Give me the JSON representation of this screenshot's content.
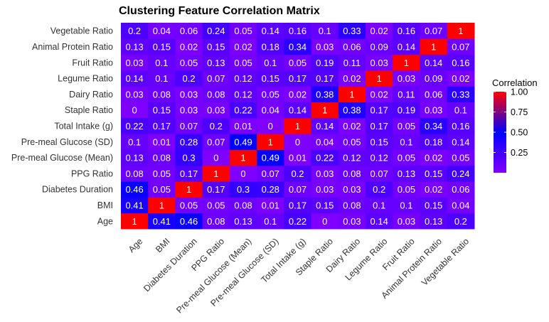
{
  "chart_data": {
    "type": "heatmap",
    "title": "Clustering Feature Correlation Matrix",
    "xlabel": "",
    "ylabel": "",
    "variables": [
      "Age",
      "BMI",
      "Diabetes Duration",
      "PPG Ratio",
      "Pre-meal Glucose (Mean)",
      "Pre-meal Glucose (SD)",
      "Total Intake (g)",
      "Staple Ratio",
      "Dairy Ratio",
      "Legume Ratio",
      "Fruit Ratio",
      "Animal Protein Ratio",
      "Vegetable Ratio"
    ],
    "matrix": [
      [
        1,
        0.41,
        0.46,
        0.08,
        0.13,
        0.1,
        0.22,
        0,
        0.03,
        0.14,
        0.03,
        0.13,
        0.2
      ],
      [
        0.41,
        1,
        0.05,
        0.05,
        0.08,
        0.01,
        0.17,
        0.15,
        0.08,
        0.1,
        0.1,
        0.15,
        0.04
      ],
      [
        0.46,
        0.05,
        1,
        0.17,
        0.3,
        0.28,
        0.07,
        0.03,
        0.03,
        0.2,
        0.05,
        0.02,
        0.06
      ],
      [
        0.08,
        0.05,
        0.17,
        1,
        0,
        0.07,
        0.2,
        0.03,
        0.08,
        0.07,
        0.13,
        0.15,
        0.24
      ],
      [
        0.13,
        0.08,
        0.3,
        0,
        1,
        0.49,
        0.01,
        0.22,
        0.12,
        0.12,
        0.05,
        0.02,
        0.05
      ],
      [
        0.1,
        0.01,
        0.28,
        0.07,
        0.49,
        1,
        0,
        0.04,
        0.05,
        0.15,
        0.1,
        0.18,
        0.14
      ],
      [
        0.22,
        0.17,
        0.07,
        0.2,
        0.01,
        0,
        1,
        0.14,
        0.02,
        0.17,
        0.05,
        0.34,
        0.16
      ],
      [
        0,
        0.15,
        0.03,
        0.03,
        0.22,
        0.04,
        0.14,
        1,
        0.38,
        0.17,
        0.19,
        0.03,
        0.1
      ],
      [
        0.03,
        0.08,
        0.03,
        0.08,
        0.12,
        0.05,
        0.02,
        0.38,
        1,
        0.02,
        0.11,
        0.06,
        0.33
      ],
      [
        0.14,
        0.1,
        0.2,
        0.07,
        0.12,
        0.15,
        0.17,
        0.17,
        0.02,
        1,
        0.03,
        0.09,
        0.02
      ],
      [
        0.03,
        0.1,
        0.05,
        0.13,
        0.05,
        0.1,
        0.05,
        0.19,
        0.11,
        0.03,
        1,
        0.14,
        0.16
      ],
      [
        0.13,
        0.15,
        0.02,
        0.15,
        0.02,
        0.18,
        0.34,
        0.03,
        0.06,
        0.09,
        0.14,
        1,
        0.07
      ],
      [
        0.2,
        0.04,
        0.06,
        0.24,
        0.05,
        0.14,
        0.16,
        0.1,
        0.33,
        0.02,
        0.16,
        0.07,
        1
      ]
    ],
    "legend": {
      "title": "Correlation",
      "ticks": [
        "1.00",
        "0.75",
        "0.50",
        "0.25"
      ],
      "tick_values": [
        1,
        0.75,
        0.5,
        0.25
      ],
      "range": [
        0,
        1
      ],
      "placement": "right"
    },
    "colors": {
      "low": "#8000ff",
      "mid": "#0000ff",
      "high": "#ff0000",
      "label": "#ffffff"
    },
    "grid": false
  }
}
